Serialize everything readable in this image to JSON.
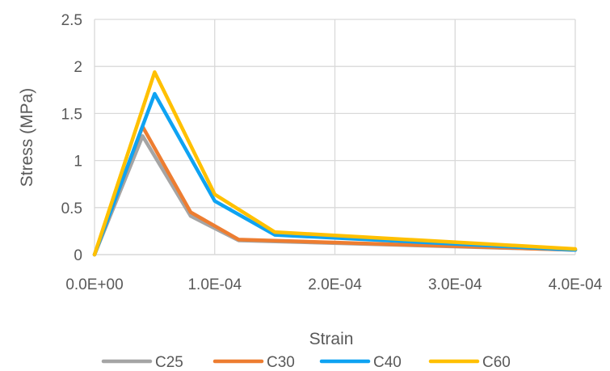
{
  "chart_data": {
    "type": "line",
    "title": "",
    "xlabel": "Strain",
    "ylabel": "Stress (MPa)",
    "xlim": [
      0,
      0.0004
    ],
    "ylim": [
      0,
      2.5
    ],
    "x_ticks": [
      0,
      0.0001,
      0.0002,
      0.0003,
      0.0004
    ],
    "x_tick_labels": [
      "0.0E+00",
      "1.0E-04",
      "2.0E-04",
      "3.0E-04",
      "4.0E-04"
    ],
    "y_ticks": [
      0,
      0.5,
      1,
      1.5,
      2,
      2.5
    ],
    "y_tick_labels": [
      "0",
      "0.5",
      "1",
      "1.5",
      "2",
      "2.5"
    ],
    "grid": true,
    "legend_position": "bottom",
    "series": [
      {
        "name": "C25",
        "color": "#A5A5A5",
        "points": [
          [
            0,
            0
          ],
          [
            4e-05,
            1.26
          ],
          [
            8e-05,
            0.41
          ],
          [
            0.00012,
            0.15
          ],
          [
            0.0004,
            0.05
          ]
        ]
      },
      {
        "name": "C30",
        "color": "#ED7D31",
        "points": [
          [
            0,
            0
          ],
          [
            4e-05,
            1.36
          ],
          [
            8e-05,
            0.45
          ],
          [
            0.00012,
            0.16
          ],
          [
            0.0004,
            0.05
          ]
        ]
      },
      {
        "name": "C40",
        "color": "#0FA3F2",
        "points": [
          [
            0,
            0
          ],
          [
            5e-05,
            1.71
          ],
          [
            0.0001,
            0.57
          ],
          [
            0.00015,
            0.21
          ],
          [
            0.0004,
            0.05
          ]
        ]
      },
      {
        "name": "C60",
        "color": "#FFC000",
        "points": [
          [
            0,
            0
          ],
          [
            5e-05,
            1.94
          ],
          [
            0.0001,
            0.64
          ],
          [
            0.00015,
            0.24
          ],
          [
            0.0004,
            0.06
          ]
        ]
      }
    ]
  }
}
